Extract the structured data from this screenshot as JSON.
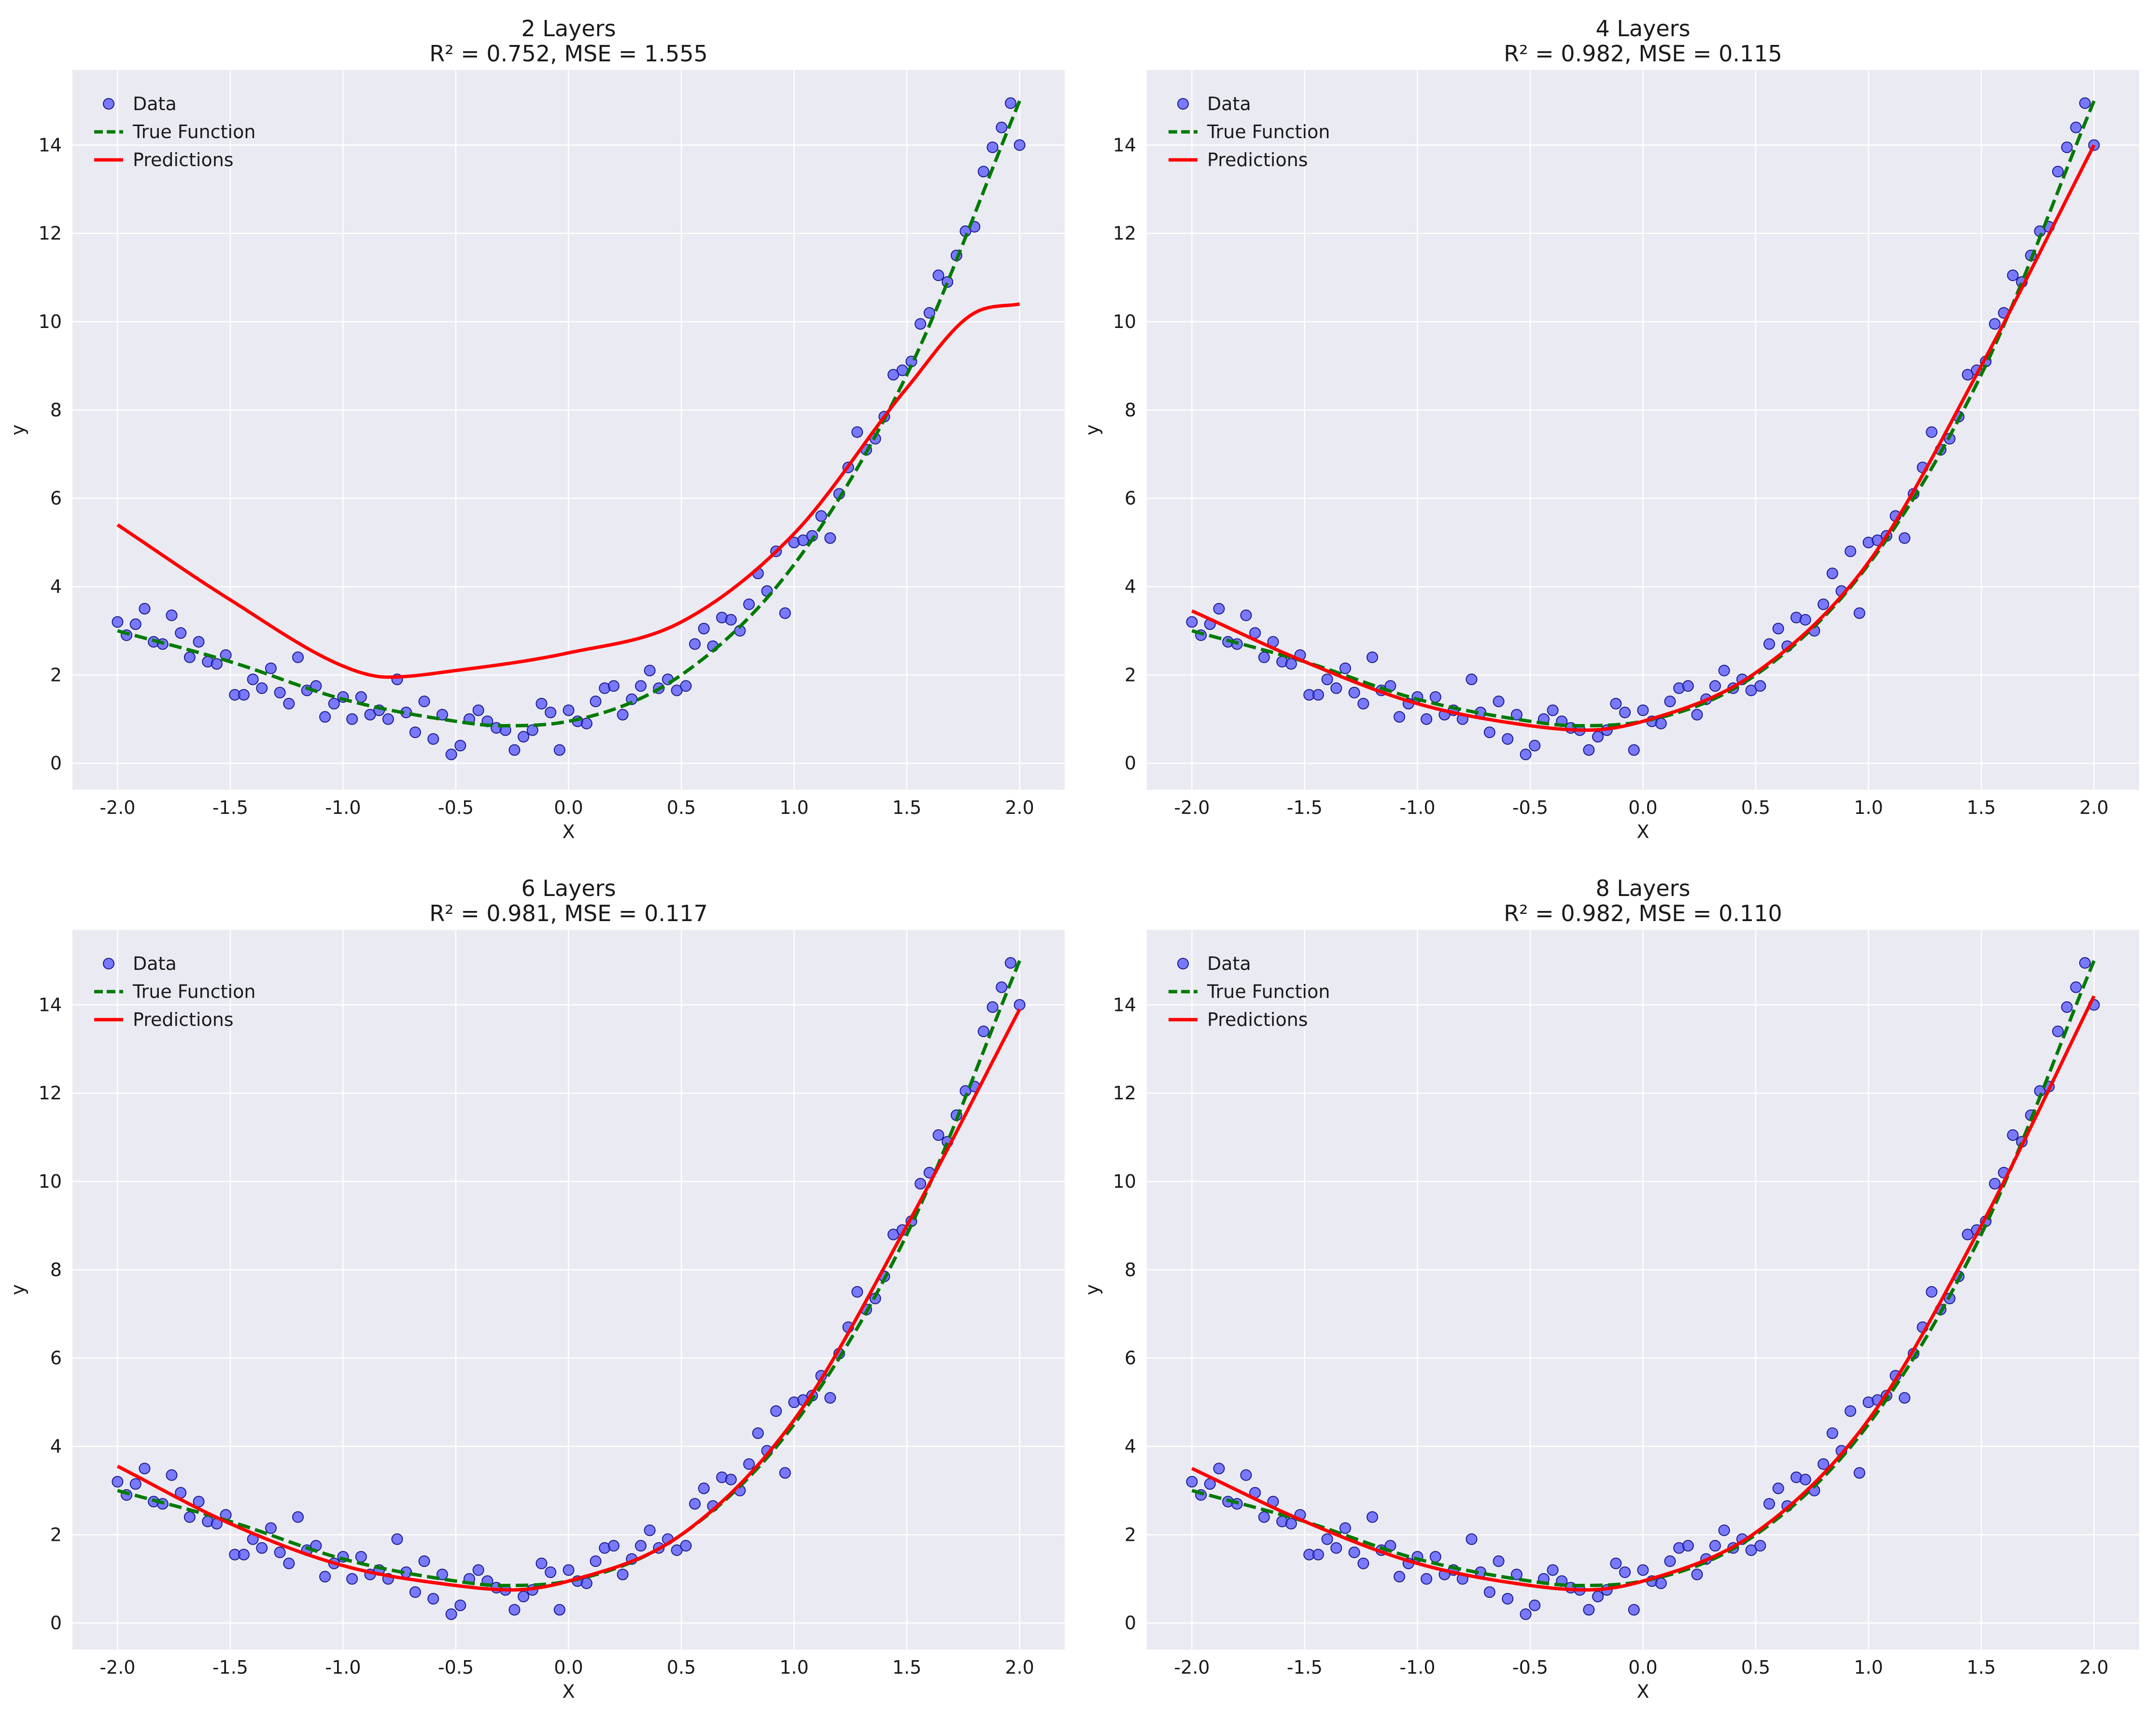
{
  "chart_data": [
    {
      "type": "scatter",
      "title": "2 Layers",
      "subtitle": "R² = 0.752, MSE = 1.555",
      "xlabel": "X",
      "ylabel": "y",
      "xlim": [
        -2.2,
        2.2
      ],
      "ylim": [
        -0.6,
        15.7
      ],
      "xticks": [
        "-2.0",
        "-1.5",
        "-1.0",
        "-0.5",
        "0.0",
        "0.5",
        "1.0",
        "1.5",
        "2.0"
      ],
      "yticks": [
        "0",
        "2",
        "4",
        "6",
        "8",
        "10",
        "12",
        "14"
      ],
      "grid": true,
      "legend_position": "top-left",
      "legend": [
        "Data",
        "True Function",
        "Predictions"
      ],
      "predictions": {
        "x": [
          -2.0,
          -1.5,
          -1.0,
          -0.8,
          -0.5,
          0.0,
          0.5,
          1.0,
          1.5,
          1.8,
          2.0
        ],
        "y": [
          5.4,
          3.7,
          2.2,
          1.95,
          2.1,
          2.5,
          3.2,
          5.2,
          8.5,
          10.2,
          10.4
        ]
      }
    },
    {
      "type": "scatter",
      "title": "4 Layers",
      "subtitle": "R² = 0.982, MSE = 0.115",
      "xlabel": "X",
      "ylabel": "y",
      "xlim": [
        -2.2,
        2.2
      ],
      "ylim": [
        -0.6,
        15.7
      ],
      "xticks": [
        "-2.0",
        "-1.5",
        "-1.0",
        "-0.5",
        "0.0",
        "0.5",
        "1.0",
        "1.5",
        "2.0"
      ],
      "yticks": [
        "0",
        "2",
        "4",
        "6",
        "8",
        "10",
        "12",
        "14"
      ],
      "grid": true,
      "legend_position": "top-left",
      "legend": [
        "Data",
        "True Function",
        "Predictions"
      ],
      "predictions": {
        "x": [
          -2.0,
          -1.5,
          -1.0,
          -0.5,
          -0.25,
          0.0,
          0.5,
          1.0,
          1.5,
          2.0
        ],
        "y": [
          3.45,
          2.3,
          1.35,
          0.85,
          0.75,
          0.95,
          2.05,
          4.55,
          9.0,
          14.0
        ]
      }
    },
    {
      "type": "scatter",
      "title": "6 Layers",
      "subtitle": "R² = 0.981, MSE = 0.117",
      "xlabel": "X",
      "ylabel": "y",
      "xlim": [
        -2.2,
        2.2
      ],
      "ylim": [
        -0.6,
        15.7
      ],
      "xticks": [
        "-2.0",
        "-1.5",
        "-1.0",
        "-0.5",
        "0.0",
        "0.5",
        "1.0",
        "1.5",
        "2.0"
      ],
      "yticks": [
        "0",
        "2",
        "4",
        "6",
        "8",
        "10",
        "12",
        "14"
      ],
      "grid": true,
      "legend_position": "top-left",
      "legend": [
        "Data",
        "True Function",
        "Predictions"
      ],
      "predictions": {
        "x": [
          -2.0,
          -1.5,
          -1.0,
          -0.5,
          -0.25,
          0.0,
          0.5,
          1.0,
          1.5,
          2.0
        ],
        "y": [
          3.55,
          2.25,
          1.3,
          0.85,
          0.75,
          0.95,
          2.0,
          4.6,
          9.0,
          13.9
        ]
      }
    },
    {
      "type": "scatter",
      "title": "8 Layers",
      "subtitle": "R² = 0.982, MSE = 0.110",
      "xlabel": "X",
      "ylabel": "y",
      "xlim": [
        -2.2,
        2.2
      ],
      "ylim": [
        -0.6,
        15.7
      ],
      "xticks": [
        "-2.0",
        "-1.5",
        "-1.0",
        "-0.5",
        "0.0",
        "0.5",
        "1.0",
        "1.5",
        "2.0"
      ],
      "yticks": [
        "0",
        "2",
        "4",
        "6",
        "8",
        "10",
        "12",
        "14"
      ],
      "grid": true,
      "legend_position": "top-left",
      "legend": [
        "Data",
        "True Function",
        "Predictions"
      ],
      "predictions": {
        "x": [
          -2.0,
          -1.5,
          -1.0,
          -0.5,
          -0.25,
          0.0,
          0.5,
          1.0,
          1.5,
          2.0
        ],
        "y": [
          3.5,
          2.3,
          1.35,
          0.85,
          0.75,
          0.95,
          2.05,
          4.6,
          9.0,
          14.2
        ]
      }
    }
  ],
  "shared_series": {
    "data_points": {
      "x": [
        -2.0,
        -1.96,
        -1.92,
        -1.88,
        -1.84,
        -1.8,
        -1.76,
        -1.72,
        -1.68,
        -1.64,
        -1.6,
        -1.56,
        -1.52,
        -1.48,
        -1.44,
        -1.4,
        -1.36,
        -1.32,
        -1.28,
        -1.24,
        -1.2,
        -1.16,
        -1.12,
        -1.08,
        -1.04,
        -1.0,
        -0.96,
        -0.92,
        -0.88,
        -0.84,
        -0.8,
        -0.76,
        -0.72,
        -0.68,
        -0.64,
        -0.6,
        -0.56,
        -0.52,
        -0.48,
        -0.44,
        -0.4,
        -0.36,
        -0.32,
        -0.28,
        -0.24,
        -0.2,
        -0.16,
        -0.12,
        -0.08,
        -0.04,
        0.0,
        0.04,
        0.08,
        0.12,
        0.16,
        0.2,
        0.24,
        0.28,
        0.32,
        0.36,
        0.4,
        0.44,
        0.48,
        0.52,
        0.56,
        0.6,
        0.64,
        0.68,
        0.72,
        0.76,
        0.8,
        0.84,
        0.88,
        0.92,
        0.96,
        1.0,
        1.04,
        1.08,
        1.12,
        1.16,
        1.2,
        1.24,
        1.28,
        1.32,
        1.36,
        1.4,
        1.44,
        1.48,
        1.52,
        1.56,
        1.6,
        1.64,
        1.68,
        1.72,
        1.76,
        1.8,
        1.84,
        1.88,
        1.92,
        1.96,
        2.0
      ],
      "y": [
        3.2,
        2.9,
        3.15,
        3.5,
        2.75,
        2.7,
        3.35,
        2.95,
        2.4,
        2.75,
        2.3,
        2.25,
        2.45,
        1.55,
        1.55,
        1.9,
        1.7,
        2.15,
        1.6,
        1.35,
        2.4,
        1.65,
        1.75,
        1.05,
        1.35,
        1.5,
        1.0,
        1.5,
        1.1,
        1.2,
        1.0,
        1.9,
        1.15,
        0.7,
        1.4,
        0.55,
        1.1,
        0.2,
        0.4,
        1.0,
        1.2,
        0.95,
        0.8,
        0.75,
        0.3,
        0.6,
        0.75,
        1.35,
        1.15,
        0.3,
        1.2,
        0.95,
        0.9,
        1.4,
        1.7,
        1.75,
        1.1,
        1.45,
        1.75,
        2.1,
        1.7,
        1.9,
        1.65,
        1.75,
        2.7,
        3.05,
        2.65,
        3.3,
        3.25,
        3.0,
        3.6,
        4.3,
        3.9,
        4.8,
        3.4,
        5.0,
        5.05,
        5.15,
        5.6,
        5.1,
        6.1,
        6.7,
        7.5,
        7.1,
        7.35,
        7.85,
        8.8,
        8.9,
        9.1,
        9.95,
        10.2,
        11.05,
        10.9,
        11.5,
        12.05,
        12.15,
        13.4,
        13.95,
        14.4,
        14.95,
        14.0
      ]
    },
    "true_function": {
      "formula_samples_x": [
        -2.0,
        -1.5,
        -1.0,
        -0.5,
        -0.3,
        0.0,
        0.5,
        1.0,
        1.5,
        2.0
      ],
      "y": [
        3.0,
        2.3,
        1.45,
        0.95,
        0.85,
        0.95,
        2.0,
        4.5,
        8.8,
        15.0
      ]
    }
  },
  "colors": {
    "background": "#eaeaf2",
    "grid": "#ffffff",
    "data": "#4d4dff",
    "data_edge": "#1a1a8c",
    "true_function": "#007a00",
    "predictions": "#ff0000"
  }
}
